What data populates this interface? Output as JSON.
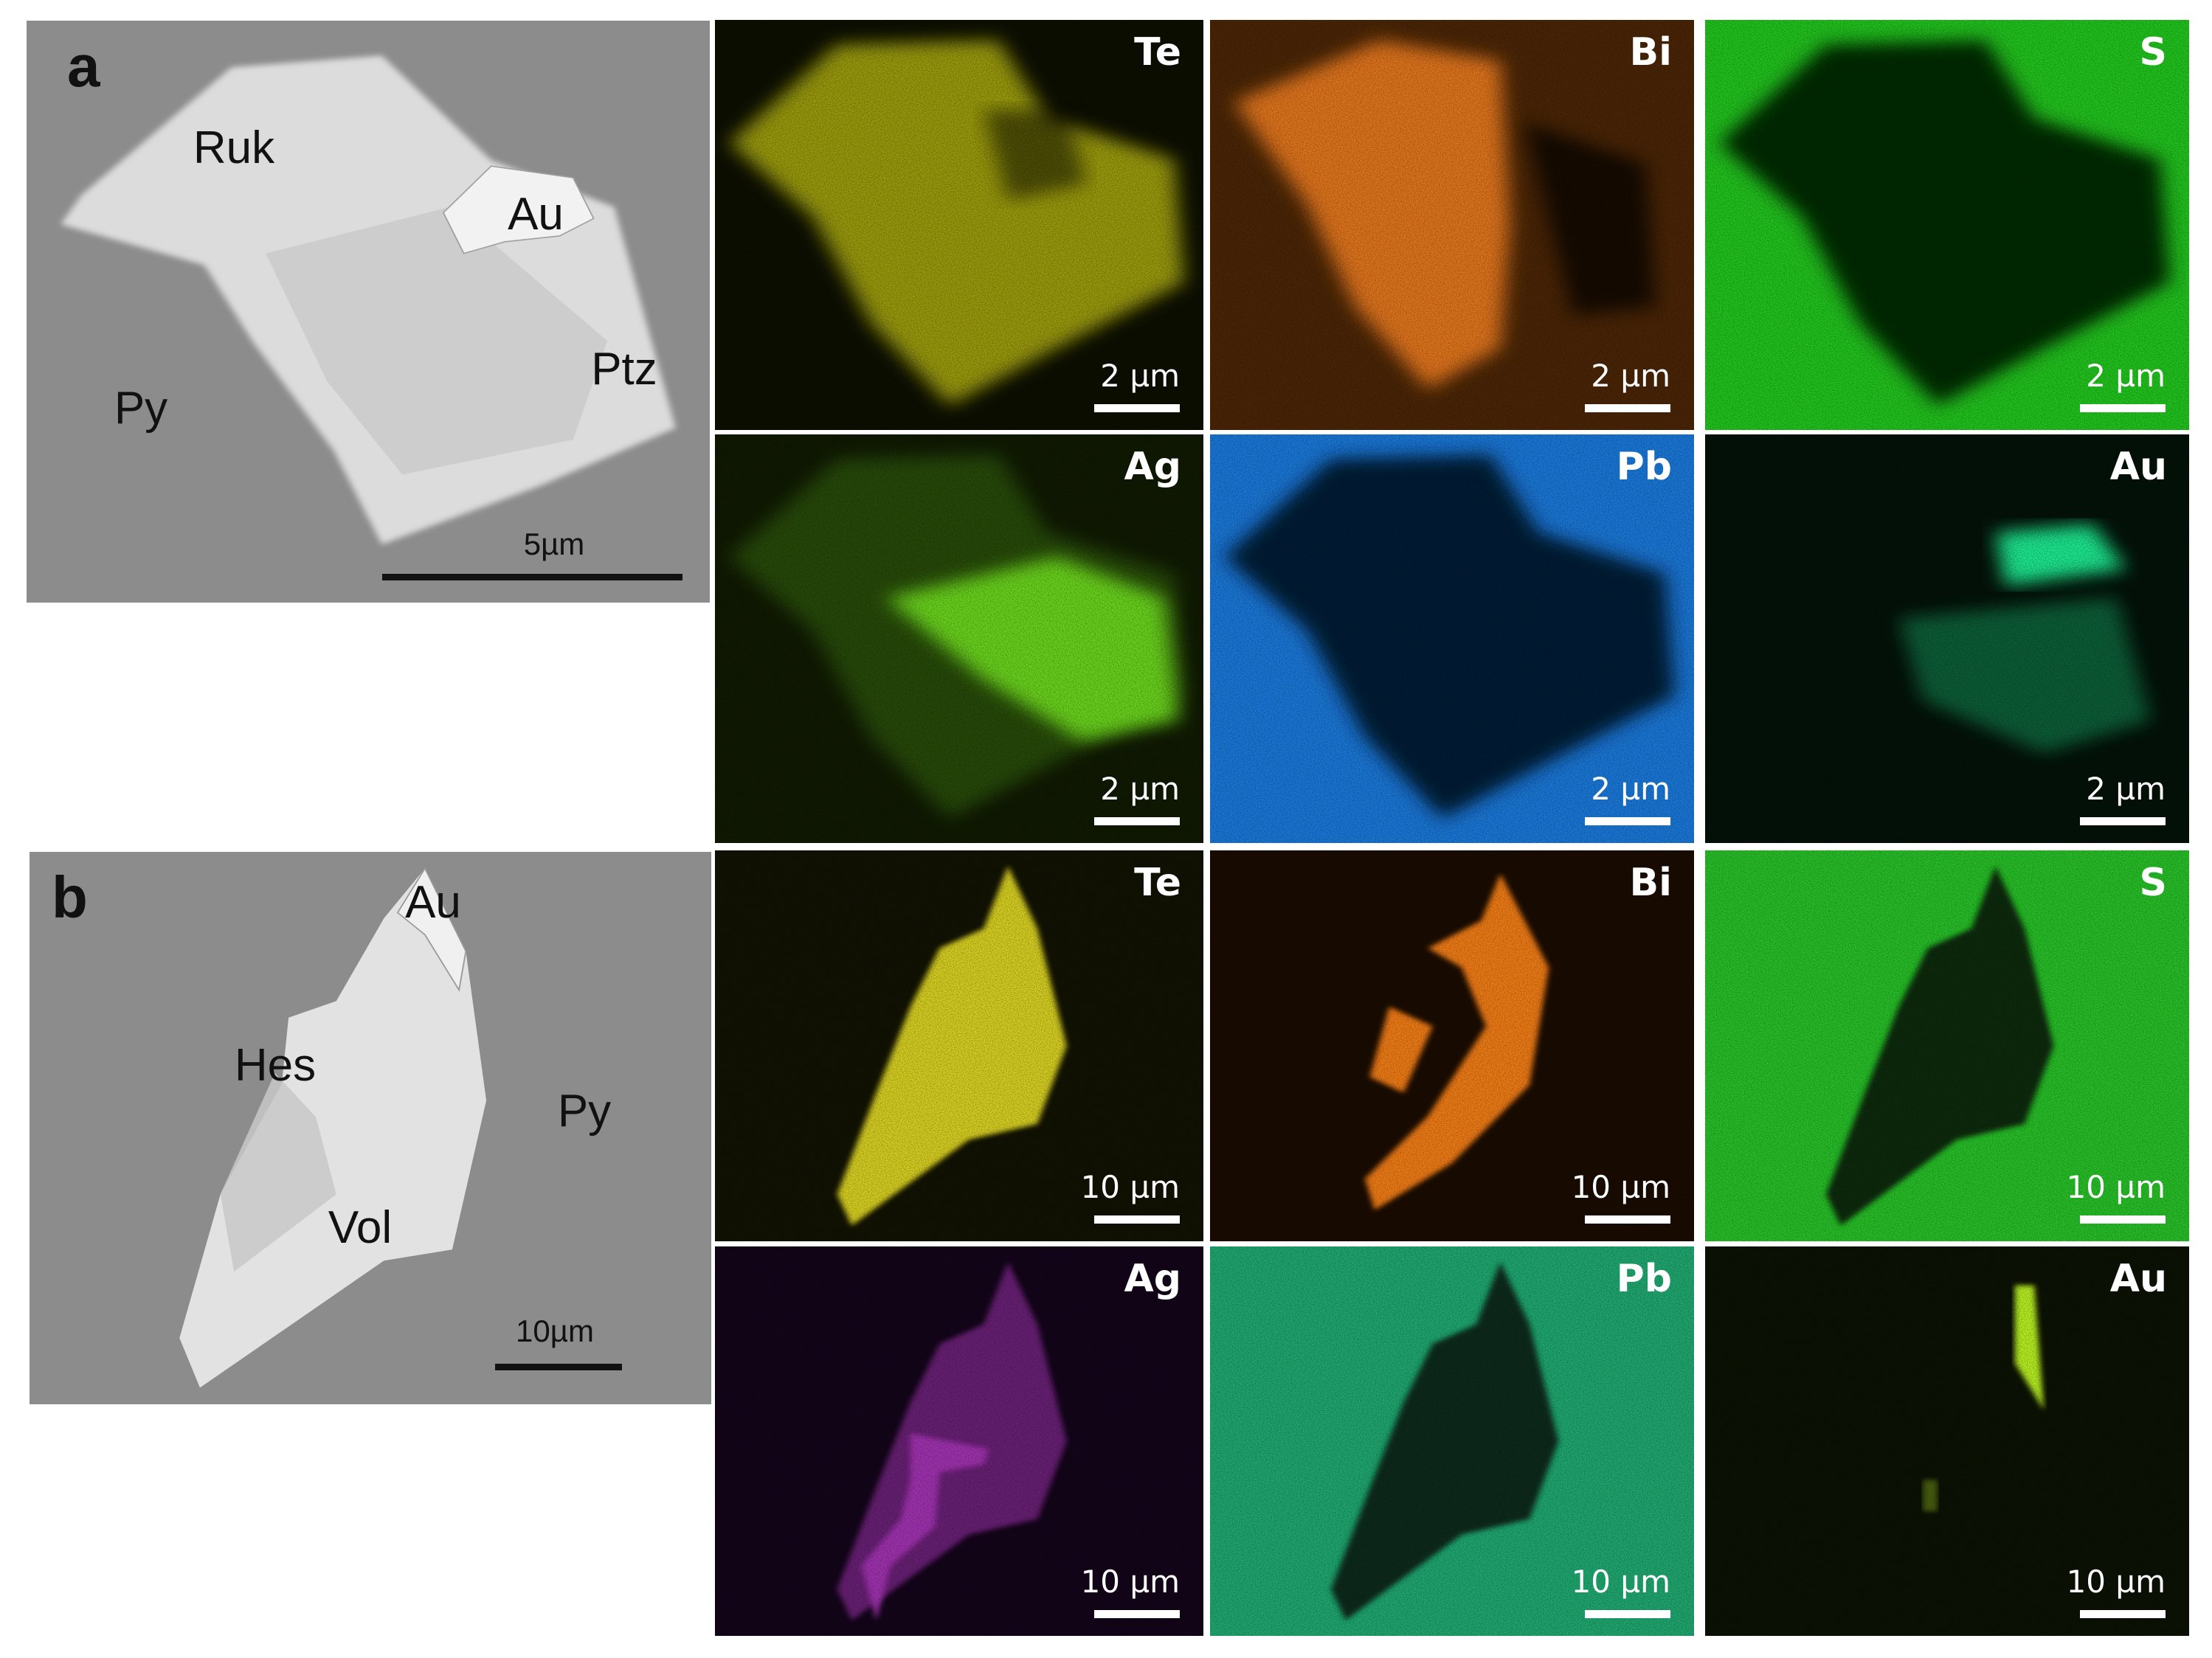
{
  "panel_a": {
    "letter": "a",
    "sem_labels": {
      "ruk": "Ruk",
      "au": "Au",
      "ptz": "Ptz",
      "py": "Py"
    },
    "scale": "5µm",
    "maps": [
      {
        "element": "Te",
        "scale": "2 µm",
        "bg": "#0d0f02",
        "fg": "#9a9a10"
      },
      {
        "element": "Bi",
        "scale": "2 µm",
        "bg": "#4a2506",
        "fg": "#e0741a"
      },
      {
        "element": "S",
        "scale": "2 µm",
        "bg": "#22c41e",
        "fg": "#062a06"
      },
      {
        "element": "Ag",
        "scale": "2 µm",
        "bg": "#101a03",
        "fg": "#6ad41a"
      },
      {
        "element": "Pb",
        "scale": "2 µm",
        "bg": "#1a78d8",
        "fg": "#061a34"
      },
      {
        "element": "Au",
        "scale": "2 µm",
        "bg": "#041208",
        "fg": "#1ee890"
      }
    ]
  },
  "panel_b": {
    "letter": "b",
    "sem_labels": {
      "au": "Au",
      "hes": "Hes",
      "py": "Py",
      "vol": "Vol"
    },
    "scale": "10µm",
    "maps": [
      {
        "element": "Te",
        "scale": "10 µm",
        "bg": "#121204",
        "fg": "#d8d020"
      },
      {
        "element": "Bi",
        "scale": "10 µm",
        "bg": "#1a0c02",
        "fg": "#f07c16"
      },
      {
        "element": "S",
        "scale": "10 µm",
        "bg": "#28c028",
        "fg": "#0a2a0a"
      },
      {
        "element": "Ag",
        "scale": "10 µm",
        "bg": "#14051a",
        "fg": "#a030b0"
      },
      {
        "element": "Pb",
        "scale": "10 µm",
        "bg": "#20a870",
        "fg": "#0a2a1e"
      },
      {
        "element": "Au",
        "scale": "10 µm",
        "bg": "#0c1204",
        "fg": "#b8f020"
      }
    ]
  }
}
